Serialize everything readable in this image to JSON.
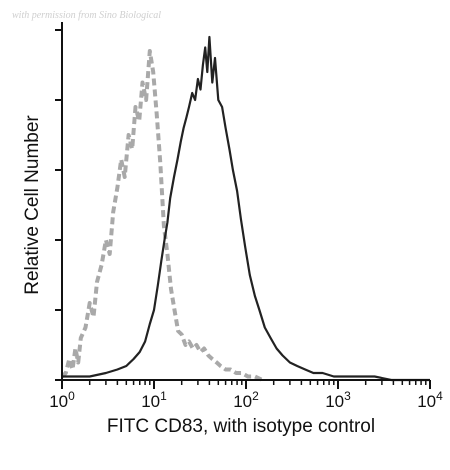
{
  "watermark": "with permission from Sino Biological",
  "chart_data": {
    "type": "line",
    "title": "",
    "xlabel": "FITC CD83, with isotype control",
    "ylabel": "Relative Cell Number",
    "xscale": "log",
    "xlim": [
      1,
      10000
    ],
    "ylim": [
      0,
      100
    ],
    "x_ticks": [
      {
        "value": 1,
        "base": "10",
        "exp": "0"
      },
      {
        "value": 10,
        "base": "10",
        "exp": "1"
      },
      {
        "value": 100,
        "base": "10",
        "exp": "2"
      },
      {
        "value": 1000,
        "base": "10",
        "exp": "3"
      },
      {
        "value": 10000,
        "base": "10",
        "exp": "4"
      }
    ],
    "grid": false,
    "legend": "none",
    "series": [
      {
        "style": "dashed",
        "color": "#a9a9a9",
        "x": [
          1.0,
          1.1,
          1.2,
          1.3,
          1.4,
          1.5,
          1.6,
          1.8,
          2.0,
          2.2,
          2.4,
          2.7,
          3.0,
          3.3,
          3.6,
          4.0,
          4.4,
          4.8,
          5.3,
          5.8,
          6.3,
          6.9,
          7.5,
          8.2,
          9.0,
          9.8,
          10.7,
          11.7,
          12.8,
          14.0,
          15.3,
          16.7,
          18.3,
          20.0,
          22.0,
          24.0,
          26.5,
          29.0,
          32.0,
          35.0,
          39.0,
          43.0,
          48.0,
          53.0,
          60.0,
          68.0,
          78.0,
          90.0,
          105.0,
          125.0,
          150.0
        ],
        "values": [
          1,
          2,
          6,
          3,
          9,
          5,
          12,
          15,
          22,
          18,
          28,
          33,
          40,
          36,
          48,
          55,
          63,
          58,
          70,
          66,
          78,
          74,
          85,
          80,
          94,
          88,
          76,
          62,
          44,
          36,
          26,
          20,
          14,
          13,
          10,
          11,
          9,
          10,
          8,
          9,
          7,
          6,
          5,
          4,
          3,
          3,
          2,
          2,
          1,
          1,
          0
        ]
      },
      {
        "style": "solid",
        "color": "#222222",
        "x": [
          1.0,
          2.0,
          3.0,
          4.0,
          5.0,
          6.0,
          7.0,
          8.0,
          9.0,
          10.0,
          11.0,
          12.0,
          13.0,
          14.0,
          15.0,
          16.5,
          18.0,
          19.5,
          21.0,
          22.5,
          24.0,
          26.0,
          28.0,
          30.0,
          32.0,
          34.0,
          36.0,
          38.0,
          40.0,
          43.0,
          46.0,
          50.0,
          55.0,
          60.0,
          66.0,
          72.0,
          80.0,
          88.0,
          98.0,
          110.0,
          125.0,
          140.0,
          160.0,
          185.0,
          215.0,
          250.0,
          300.0,
          360.0,
          440.0,
          540.0,
          680.0,
          900.0,
          1200.0,
          1700.0,
          2500.0,
          3800.0,
          6000.0,
          10000.0
        ],
        "values": [
          1,
          1,
          2,
          3,
          4,
          6,
          8,
          11,
          16,
          20,
          27,
          34,
          40,
          45,
          52,
          58,
          63,
          68,
          72,
          75,
          78,
          82,
          80,
          86,
          83,
          90,
          95,
          88,
          98,
          85,
          92,
          80,
          78,
          72,
          66,
          60,
          54,
          46,
          38,
          30,
          24,
          20,
          15,
          12,
          9,
          7,
          5,
          4,
          3,
          2,
          2,
          1,
          1,
          1,
          1,
          0,
          0,
          0
        ]
      }
    ]
  }
}
